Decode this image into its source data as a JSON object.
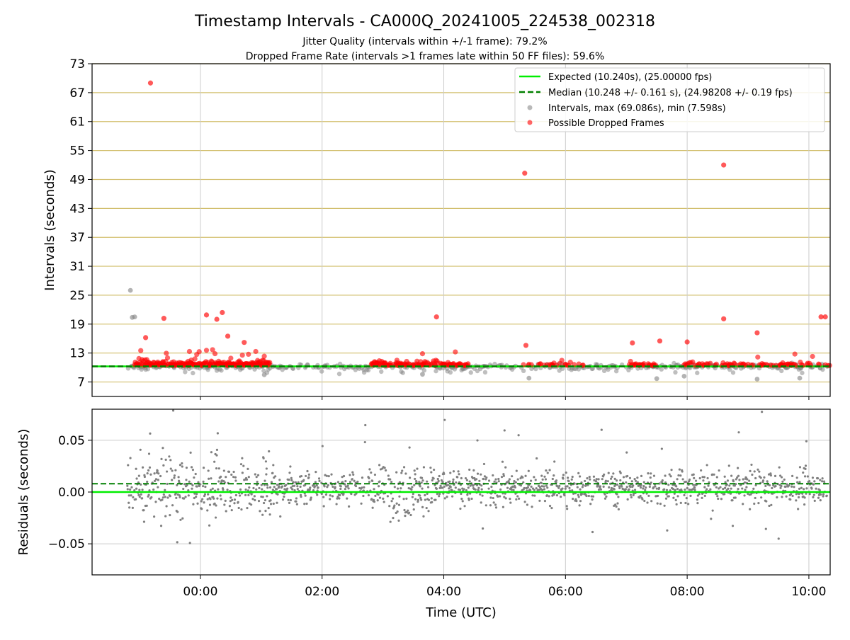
{
  "figure": {
    "title": "Timestamp Intervals - CA000Q_20241005_224538_002318",
    "subtitle_1": "Jitter Quality (intervals within +/-1 frame): 79.2%",
    "subtitle_2": "Dropped Frame Rate (intervals >1 frames late within 50 FF files): 59.6%"
  },
  "colors": {
    "expected": "#00ee00",
    "median": "#008000",
    "intervals": "#808080",
    "dropped": "#ff0000",
    "hgrid_top": "#d2bf6e",
    "grid": "#cccccc"
  },
  "chart_data": [
    {
      "id": "intervals",
      "type": "scatter",
      "ylabel": "Intervals (seconds)",
      "ylim": [
        4,
        73
      ],
      "yticks": [
        "7",
        "13",
        "19",
        "25",
        "31",
        "37",
        "43",
        "49",
        "55",
        "61",
        "67",
        "73"
      ],
      "legend_position": "top-right",
      "legend": [
        "Expected (10.240s), (25.00000 fps)",
        "Median (10.248 +/- 0.161 s), (24.98208 +/- 0.19 fps)",
        "Intervals, max (69.086s), min (7.598s)",
        "Possible Dropped Frames"
      ],
      "expected_value": 10.24,
      "median_value": 10.248,
      "outlier_intervals": [
        {
          "t": -1.15,
          "v": 26.0
        },
        {
          "t": -1.12,
          "v": 20.4
        },
        {
          "t": -1.08,
          "v": 20.5
        },
        {
          "t": 1.05,
          "v": 8.5
        },
        {
          "t": 3.65,
          "v": 8.6
        },
        {
          "t": 5.4,
          "v": 7.8
        },
        {
          "t": 7.5,
          "v": 7.7
        },
        {
          "t": 7.95,
          "v": 8.2
        },
        {
          "t": 9.15,
          "v": 7.6
        },
        {
          "t": 9.85,
          "v": 7.8
        }
      ],
      "dropped_frames": [
        {
          "t": -0.82,
          "v": 69.0
        },
        {
          "t": 5.33,
          "v": 50.3
        },
        {
          "t": 8.6,
          "v": 52.0
        },
        {
          "t": -0.9,
          "v": 16.2
        },
        {
          "t": -0.6,
          "v": 20.2
        },
        {
          "t": 0.1,
          "v": 20.9
        },
        {
          "t": 0.27,
          "v": 20.0
        },
        {
          "t": 0.36,
          "v": 21.4
        },
        {
          "t": 0.45,
          "v": 16.5
        },
        {
          "t": 0.72,
          "v": 15.2
        },
        {
          "t": 3.88,
          "v": 20.5
        },
        {
          "t": 5.35,
          "v": 14.6
        },
        {
          "t": 7.1,
          "v": 15.1
        },
        {
          "t": 7.55,
          "v": 15.5
        },
        {
          "t": 8.0,
          "v": 15.3
        },
        {
          "t": 8.6,
          "v": 20.1
        },
        {
          "t": 9.15,
          "v": 17.2
        },
        {
          "t": 10.2,
          "v": 20.5
        },
        {
          "t": 10.27,
          "v": 20.5
        }
      ]
    },
    {
      "id": "residuals",
      "type": "scatter",
      "ylabel": "Residuals (seconds)",
      "xlabel": "Time (UTC)",
      "ylim": [
        -0.08,
        0.08
      ],
      "yticks": [
        "0.05",
        "0.00",
        "−0.05"
      ],
      "ytick_values": [
        0.05,
        0.0,
        -0.05
      ],
      "median_offset": 0.008,
      "xlim_hours": [
        -1.78,
        10.35
      ],
      "xticks": [
        "00:00",
        "02:00",
        "04:00",
        "06:00",
        "08:00",
        "10:00"
      ],
      "xtick_hours": [
        0,
        2,
        4,
        6,
        8,
        10
      ]
    }
  ]
}
